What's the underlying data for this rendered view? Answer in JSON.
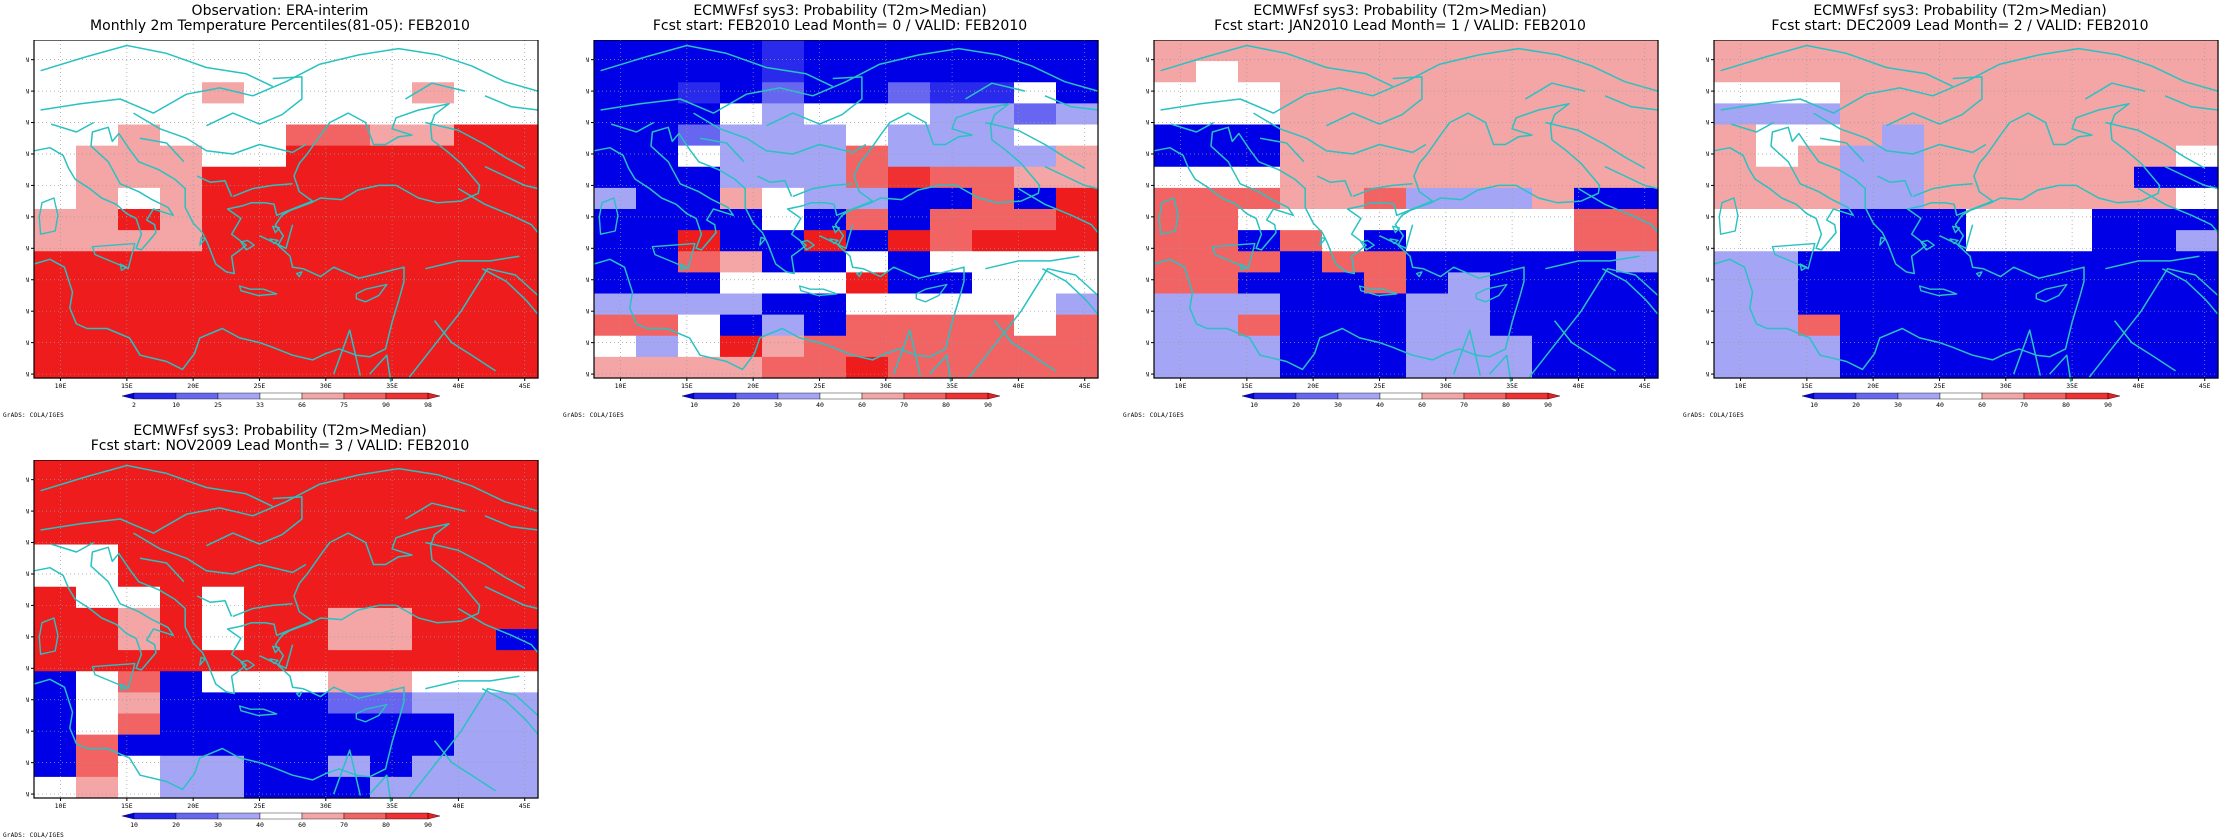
{
  "credit": "GrADS: COLA/IGES",
  "map_axes": {
    "lon_labels": [
      "10E",
      "15E",
      "20E",
      "25E",
      "30E",
      "35E",
      "40E",
      "45E"
    ],
    "lon_values": [
      10,
      15,
      20,
      25,
      30,
      35,
      40,
      45
    ],
    "lat_labels": [
      "30N",
      "32N",
      "34N",
      "36N",
      "38N",
      "40N",
      "42N",
      "44N",
      "46N",
      "48N",
      "50N"
    ],
    "lat_values": [
      30,
      32,
      34,
      36,
      38,
      40,
      42,
      44,
      46,
      48,
      50
    ],
    "lon_range": [
      8,
      46
    ],
    "lat_range": [
      29.75,
      51.25
    ],
    "grid": "dotted",
    "coastline_color": "#29c2c2"
  },
  "colors": {
    "c0": "#0000e6",
    "c1": "#2a2aec",
    "c2": "#6666f0",
    "c3": "#a5a5f6",
    "c4": "#ffffff",
    "c5": "#f4a5a5",
    "c6": "#f26464",
    "c7": "#ef3131",
    "c8": "#ee1c1c"
  },
  "panels": [
    {
      "id": "obs",
      "title_line1": "Observation: ERA-interim",
      "title_line2": "Monthly 2m Temperature Percentiles(81-05): FEB2010",
      "legend_labels": [
        "2",
        "10",
        "25",
        "33",
        "66",
        "75",
        "90",
        "98"
      ],
      "grid_cells": [
        "444444444444",
        "444444444444",
        "444454444544",
        "444444444444",
        "445444665588",
        "455544888888",
        "455588888888",
        "454588888888",
        "558588888888",
        "555588888888",
        "888888888888",
        "888888888888",
        "888888888888",
        "888888888888",
        "888888888888",
        "888888888888"
      ]
    },
    {
      "id": "lead0",
      "title_line1": "ECMWFsf sys3: Probability (T2m>Median)",
      "title_line2": "Fcst start: FEB2010  Lead Month= 0 / VALID: FEB2010",
      "legend_labels": [
        "10",
        "20",
        "30",
        "40",
        "60",
        "70",
        "80",
        "90"
      ],
      "grid_cells": [
        "000010000000",
        "000010000000",
        "001020021140",
        "000434443323",
        "002333433344",
        "004333633335",
        "000333676655",
        "300543300608",
        "000040606668",
        "008008086888",
        "006500404444",
        "000444800444",
        "333300444443",
        "664030666646",
        "434856666666",
        "555566866666"
      ]
    },
    {
      "id": "lead1",
      "title_line1": "ECMWFsf sys3: Probability (T2m>Median)",
      "title_line2": "Fcst start: JAN2010  Lead Month= 1 / VALID: FEB2010",
      "legend_labels": [
        "10",
        "20",
        "30",
        "40",
        "60",
        "70",
        "80",
        "90"
      ],
      "grid_cells": [
        "555555555555",
        "545555555555",
        "444555555555",
        "444555555555",
        "000555555555",
        "000555555555",
        "444555555555",
        "666556333500",
        "664444444466",
        "660640444466",
        "666066000003",
        "660006030000",
        "333000330000",
        "336000330000",
        "333000333000",
        "333000333000"
      ]
    },
    {
      "id": "lead2",
      "title_line1": "ECMWFsf sys3: Probability (T2m>Median)",
      "title_line2": "Fcst start: DEC2009  Lead Month= 2 / VALID: FEB2010",
      "legend_labels": [
        "10",
        "20",
        "30",
        "40",
        "60",
        "70",
        "80",
        "90"
      ],
      "grid_cells": [
        "555555555555",
        "555555555555",
        "444555555555",
        "333555555555",
        "544535555555",
        "545335555554",
        "555335555500",
        "555335555554",
        "444000444000",
        "444000444003",
        "330000000000",
        "330000000000",
        "330000000000",
        "336000000000",
        "333000000000",
        "333000000000"
      ]
    },
    {
      "id": "lead3",
      "title_line1": "ECMWFsf sys3: Probability (T2m>Median)",
      "title_line2": "Fcst start: NOV2009  Lead Month= 3 / VALID: FEB2010",
      "legend_labels": [
        "10",
        "20",
        "30",
        "40",
        "60",
        "70",
        "80",
        "90"
      ],
      "grid_cells": [
        "888888888888",
        "888888888888",
        "888888888888",
        "888888888888",
        "448888888888",
        "448888888888",
        "844848888888",
        "885848855888",
        "885848855880",
        "888888888888",
        "046044455444",
        "045000022333",
        "046000000033",
        "060000000033",
        "064330030333",
        "454330003333"
      ]
    }
  ]
}
